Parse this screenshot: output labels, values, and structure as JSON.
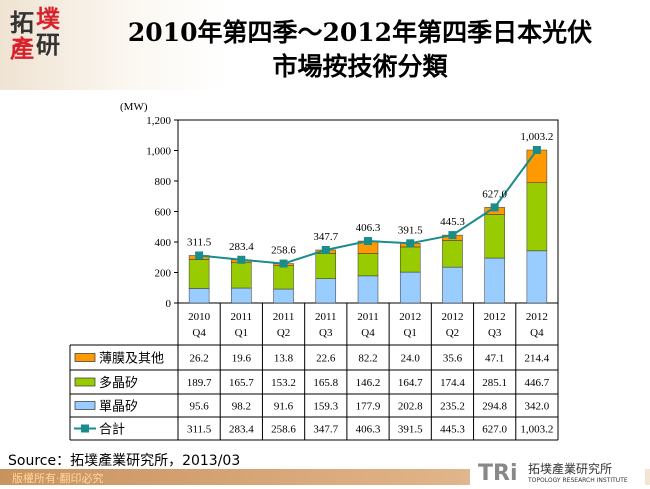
{
  "header": {
    "title_line1": "2010年第四季～2012年第四季日本光伏",
    "title_line2": "市場按技術分類",
    "logo_text": "拓墣產研"
  },
  "chart_data": {
    "type": "bar",
    "stacked": true,
    "unit_label": "(MW)",
    "categories": [
      [
        "2010",
        "Q4"
      ],
      [
        "2011",
        "Q1"
      ],
      [
        "2011",
        "Q2"
      ],
      [
        "2011",
        "Q3"
      ],
      [
        "2011",
        "Q4"
      ],
      [
        "2012",
        "Q1"
      ],
      [
        "2012",
        "Q2"
      ],
      [
        "2012",
        "Q3"
      ],
      [
        "2012",
        "Q4"
      ]
    ],
    "ylim": [
      0,
      1200
    ],
    "yticks": [
      "0",
      "200",
      "400",
      "600",
      "800",
      "1,000",
      "1,200"
    ],
    "series": [
      {
        "name": "薄膜及其他",
        "color": "#FF9900",
        "values": [
          26.2,
          19.6,
          13.8,
          22.6,
          82.2,
          24.0,
          35.6,
          47.1,
          214.4
        ],
        "labels": [
          "26.2",
          "19.6",
          "13.8",
          "22.6",
          "82.2",
          "24.0",
          "35.6",
          "47.1",
          "214.4"
        ]
      },
      {
        "name": "多晶矽",
        "color": "#99CC00",
        "values": [
          189.7,
          165.7,
          153.2,
          165.8,
          146.2,
          164.7,
          174.4,
          285.1,
          446.7
        ],
        "labels": [
          "189.7",
          "165.7",
          "153.2",
          "165.8",
          "146.2",
          "164.7",
          "174.4",
          "285.1",
          "446.7"
        ]
      },
      {
        "name": "單晶矽",
        "color": "#99CCFF",
        "values": [
          95.6,
          98.2,
          91.6,
          159.3,
          177.9,
          202.8,
          235.2,
          294.8,
          342.0
        ],
        "labels": [
          "95.6",
          "98.2",
          "91.6",
          "159.3",
          "177.9",
          "202.8",
          "235.2",
          "294.8",
          "342.0"
        ]
      }
    ],
    "total": {
      "name": "合計",
      "color": "#1A8C8C",
      "type": "line",
      "values": [
        311.5,
        283.4,
        258.6,
        347.7,
        406.3,
        391.5,
        445.3,
        627.0,
        1003.2
      ],
      "labels": [
        "311.5",
        "283.4",
        "258.6",
        "347.7",
        "406.3",
        "391.5",
        "445.3",
        "627.0",
        "1,003.2"
      ]
    },
    "data_table": true,
    "grid": false
  },
  "footer": {
    "source": "Source：拓墣產業研究所，2013/03",
    "copyright": "版權所有‧翻印必究",
    "tri_logo": "TRi 拓墣產業研究所 TOPOLOGY RESEARCH INSTITUTE"
  }
}
